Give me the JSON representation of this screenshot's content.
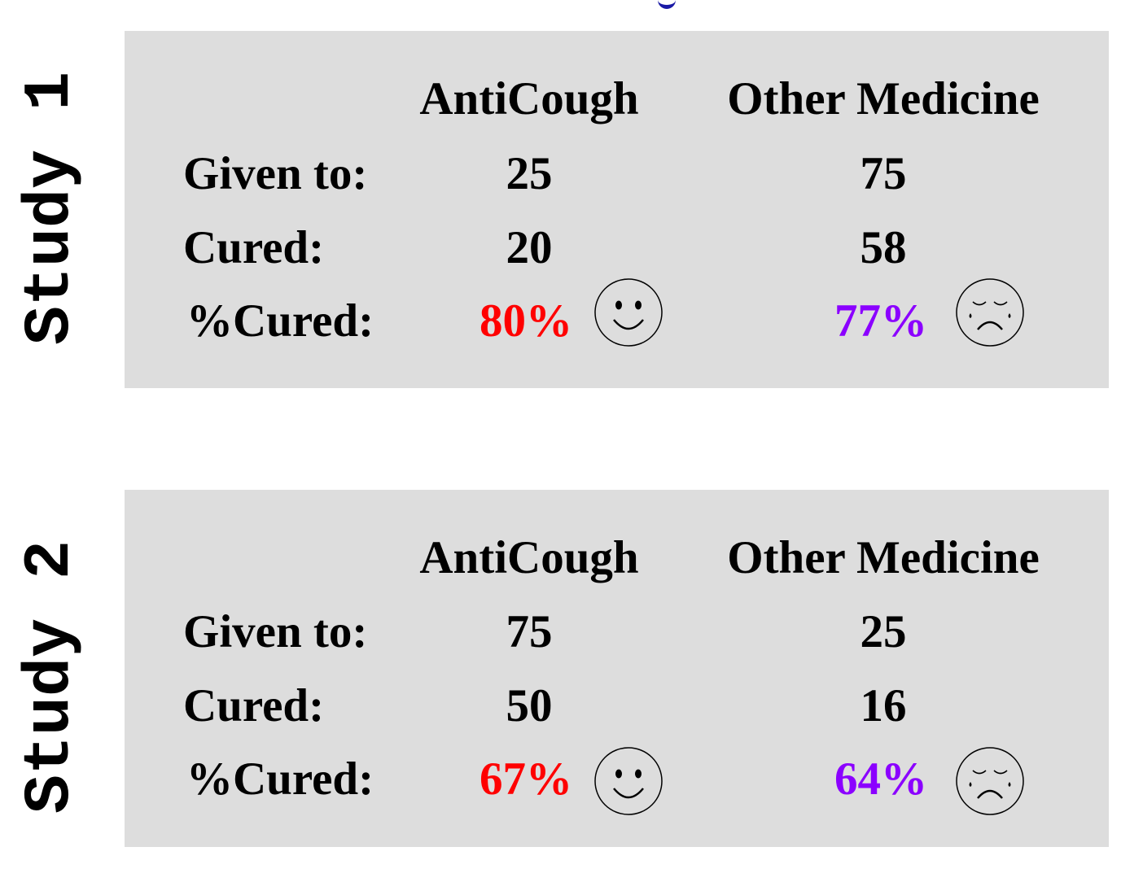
{
  "studies": [
    {
      "label": "Study 1",
      "columns": [
        "AntiCough",
        "Other Medicine"
      ],
      "rows": {
        "given_label": "Given to:",
        "cured_label": "Cured:",
        "pct_label": "%Cured:"
      },
      "anticough": {
        "given": "25",
        "cured": "20",
        "pct": "80%"
      },
      "other": {
        "given": "75",
        "cured": "58",
        "pct": "77%"
      },
      "icons": {
        "anticough": "smiley-face-icon",
        "other": "crying-face-icon"
      }
    },
    {
      "label": "Study 2",
      "columns": [
        "AntiCough",
        "Other Medicine"
      ],
      "rows": {
        "given_label": "Given to:",
        "cured_label": "Cured:",
        "pct_label": "%Cured:"
      },
      "anticough": {
        "given": "75",
        "cured": "50",
        "pct": "67%"
      },
      "other": {
        "given": "25",
        "cured": "16",
        "pct": "64%"
      },
      "icons": {
        "anticough": "smiley-face-icon",
        "other": "crying-face-icon"
      }
    }
  ],
  "colors": {
    "panel_background": "#dddddd",
    "anticough_pct": "#ff0000",
    "other_pct": "#8b00ff"
  }
}
